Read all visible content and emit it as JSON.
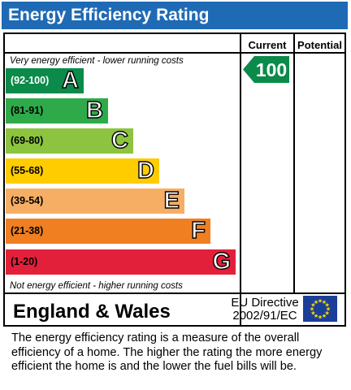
{
  "title": "Energy Efficiency Rating",
  "columns": {
    "current": "Current",
    "potential": "Potential"
  },
  "top_note": "Very energy efficient - lower running costs",
  "bottom_note": "Not energy efficient - higher running costs",
  "bands": [
    {
      "range": "(92-100)",
      "letter": "A",
      "color": "#0c8a4a"
    },
    {
      "range": "(81-91)",
      "letter": "B",
      "color": "#2eaa4a"
    },
    {
      "range": "(69-80)",
      "letter": "C",
      "color": "#8cc43f"
    },
    {
      "range": "(55-68)",
      "letter": "D",
      "color": "#ffcc00"
    },
    {
      "range": "(39-54)",
      "letter": "E",
      "color": "#f6ae64"
    },
    {
      "range": "(21-38)",
      "letter": "F",
      "color": "#f07f22"
    },
    {
      "range": "(1-20)",
      "letter": "G",
      "color": "#e3203a"
    }
  ],
  "current_rating": {
    "value": "100",
    "band": "A",
    "color": "#0c8a4a"
  },
  "footer": {
    "region": "England & Wales",
    "directive_line1": "EU Directive",
    "directive_line2": "2002/91/EC",
    "flag_icon": "eu-flag-icon"
  },
  "description": "The energy efficiency rating is a measure of the overall efficiency of a home.  The higher the rating the more energy efficient the home is and the lower the fuel bills will be."
}
